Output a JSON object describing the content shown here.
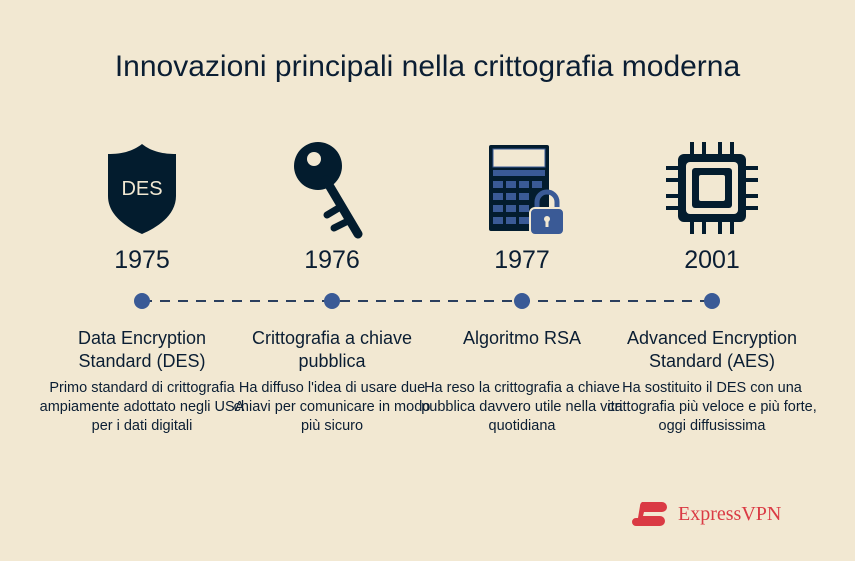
{
  "title": "Innovazioni principali nella crittografia moderna",
  "colors": {
    "background": "#f2e8d2",
    "navy": "#031c2e",
    "blue": "#3a5a96",
    "brand_red": "#da3a44"
  },
  "items": [
    {
      "icon": "shield-des-icon",
      "icon_text": "DES",
      "year": "1975",
      "heading": "Data Encryption Standard (DES)",
      "description": "Primo standard di crittografia ampiamente adottato negli USA per i dati digitali"
    },
    {
      "icon": "key-icon",
      "year": "1976",
      "heading": "Crittografia a chiave pubblica",
      "description": "Ha diffuso l'idea di usare due chiavi per comunicare in modo più sicuro"
    },
    {
      "icon": "calculator-lock-icon",
      "year": "1977",
      "heading": "Algoritmo RSA",
      "description": "Ha reso la crittografia a chiave pubblica davvero utile nella vita quotidiana"
    },
    {
      "icon": "chip-icon",
      "year": "2001",
      "heading": "Advanced Encryption Standard (AES)",
      "description": "Ha sostituito il DES con una crittografia più veloce e più forte, oggi diffusissima"
    }
  ],
  "brand": "ExpressVPN"
}
